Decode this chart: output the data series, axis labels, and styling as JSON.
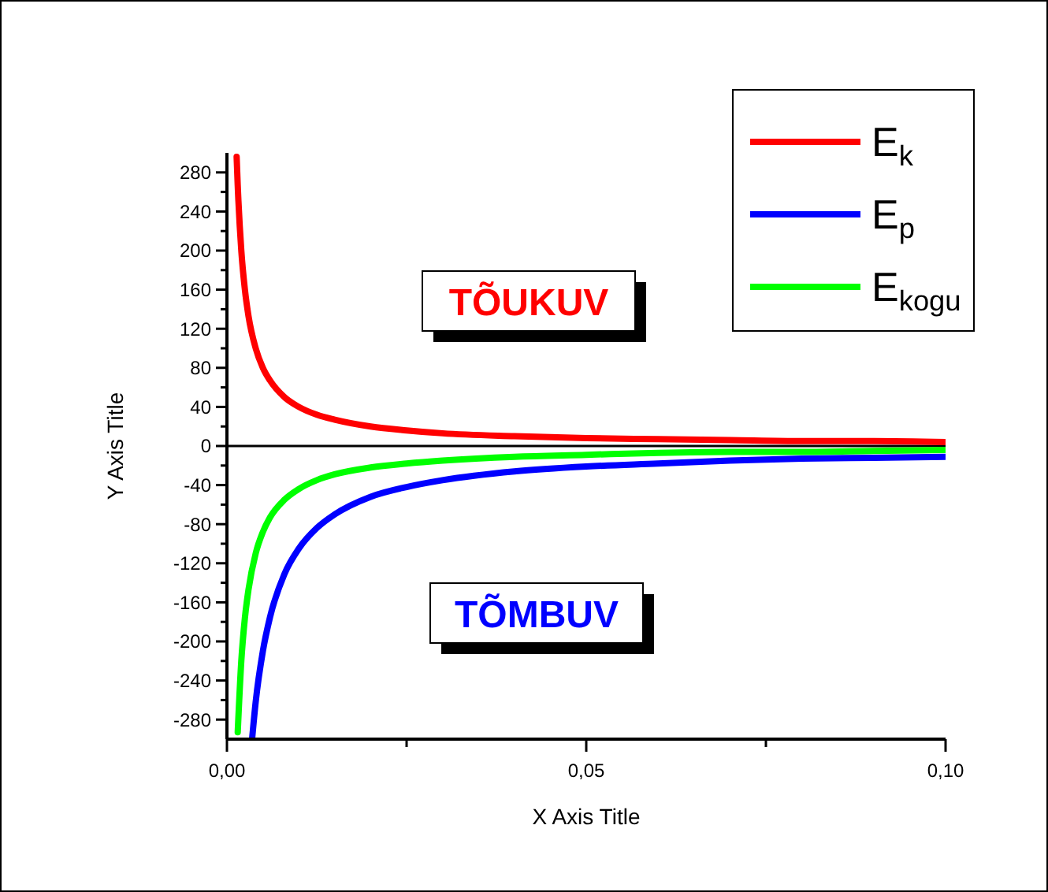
{
  "chart_data": {
    "type": "line",
    "xlabel": "X Axis Title",
    "ylabel": "Y Axis Title",
    "xlim": [
      0,
      0.1
    ],
    "xticks": [
      {
        "value": 0,
        "label": "0,00"
      },
      {
        "value": 0.025,
        "label": null
      },
      {
        "value": 0.05,
        "label": "0,05"
      },
      {
        "value": 0.075,
        "label": null
      },
      {
        "value": 0.1,
        "label": "0,10"
      }
    ],
    "ylim": [
      -300,
      300
    ],
    "yticks": [
      -280,
      {
        "value": -260,
        "label": null
      },
      -240,
      {
        "value": -220,
        "label": null
      },
      -200,
      {
        "value": -180,
        "label": null
      },
      -160,
      {
        "value": -140,
        "label": null
      },
      -120,
      {
        "value": -100,
        "label": null
      },
      -80,
      {
        "value": -60,
        "label": null
      },
      -40,
      {
        "value": -20,
        "label": null
      },
      0,
      {
        "value": 20,
        "label": null
      },
      40,
      {
        "value": 60,
        "label": null
      },
      80,
      {
        "value": 100,
        "label": null
      },
      120,
      {
        "value": 140,
        "label": null
      },
      160,
      {
        "value": 180,
        "label": null
      },
      200,
      {
        "value": 220,
        "label": null
      },
      240,
      {
        "value": 260,
        "label": null
      },
      280
    ],
    "series": [
      {
        "name": "E$_{k}$",
        "color": "#ff0000",
        "x": [
          0.00135,
          0.0015,
          0.002,
          0.0025,
          0.003,
          0.004,
          0.005,
          0.006,
          0.008,
          0.01,
          0.0125,
          0.015,
          0.02,
          0.025,
          0.03,
          0.04,
          0.05,
          0.06,
          0.07,
          0.08,
          0.09,
          0.1
        ],
        "values": [
          296,
          267,
          200,
          160,
          133,
          100,
          80,
          67,
          50,
          40,
          32,
          27,
          20,
          16,
          13,
          10,
          8,
          7,
          6,
          5,
          5,
          4
        ]
      },
      {
        "name": "E$_{p}$",
        "color": "#0000ff",
        "x": [
          0.0035,
          0.004,
          0.005,
          0.006,
          0.008,
          0.01,
          0.0125,
          0.015,
          0.02,
          0.025,
          0.03,
          0.04,
          0.05,
          0.06,
          0.07,
          0.08,
          0.09,
          0.1
        ],
        "values": [
          -300,
          -262,
          -210,
          -175,
          -131,
          -105,
          -84,
          -70,
          -52,
          -42,
          -35,
          -26,
          -21,
          -18,
          -15,
          -13,
          -12,
          -11
        ]
      },
      {
        "name": "E$_{kogu}$",
        "color": "#00ff00",
        "x": [
          0.0015,
          0.002,
          0.0025,
          0.003,
          0.004,
          0.005,
          0.006,
          0.008,
          0.01,
          0.0125,
          0.015,
          0.02,
          0.025,
          0.03,
          0.04,
          0.05,
          0.06,
          0.07,
          0.08,
          0.09,
          0.1
        ],
        "values": [
          -293,
          -220,
          -176,
          -147,
          -110,
          -88,
          -73,
          -55,
          -44,
          -35,
          -29,
          -22,
          -18,
          -15,
          -11,
          -9,
          -7,
          -6,
          -6,
          -5,
          -4
        ]
      }
    ],
    "ref_lines": [
      {
        "axis": "y",
        "value": 0,
        "label": null,
        "color": "#000000"
      }
    ],
    "annotations": [
      "TÕUKUV",
      "TÕMBUV"
    ],
    "legend": "top right",
    "grid": false,
    "marker": "none",
    "line_style": "solid"
  }
}
